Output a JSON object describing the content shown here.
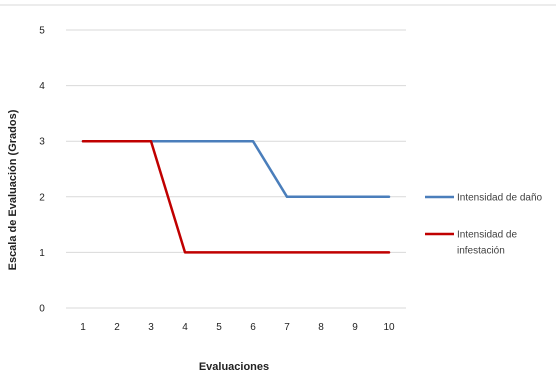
{
  "chart_data": {
    "type": "line",
    "title": "",
    "xlabel": "Evaluaciones",
    "ylabel": "Escala de Evaluación (Grados)",
    "categories": [
      "1",
      "2",
      "3",
      "4",
      "5",
      "6",
      "7",
      "8",
      "9",
      "10"
    ],
    "y_ticks": [
      "0",
      "1",
      "2",
      "3",
      "4",
      "5"
    ],
    "ylim": [
      0,
      5
    ],
    "grid": "horizontal",
    "legend_position": "right",
    "series": [
      {
        "name": "Intensidad de daño",
        "color": "#4a7ebb",
        "values": [
          3,
          3,
          3,
          3,
          3,
          3,
          2,
          2,
          2,
          2
        ]
      },
      {
        "name": "Intensidad de infestación",
        "name_lines": [
          "Intensidad de",
          "infestación"
        ],
        "color": "#c00000",
        "values": [
          3,
          3,
          3,
          1,
          1,
          1,
          1,
          1,
          1,
          1
        ]
      }
    ]
  }
}
